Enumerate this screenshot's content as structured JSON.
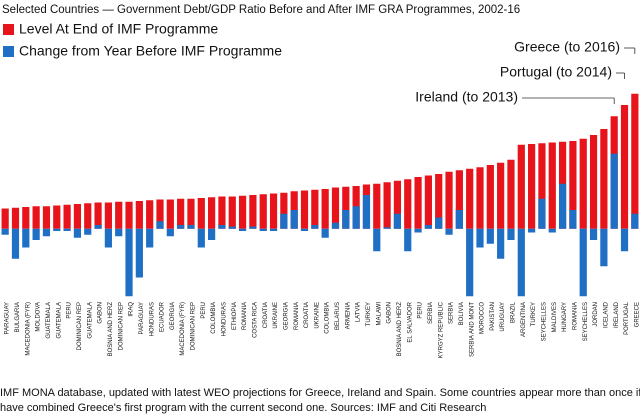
{
  "chart_data": {
    "type": "bar",
    "title": "Selected Countries — Government Debt/GDP Ratio Before and After IMF GRA Programmes, 2002-16",
    "categories": [
      "PARAGUAY",
      "BULGARIA",
      "MACEDONIA (FYR)",
      "MOLDOVA",
      "GUATEMALA",
      "GUATEMALA",
      "PERU",
      "DOMINICAN REP",
      "GUATEMALA",
      "GABON",
      "BOSNIA AND HERZ",
      "DOMINICAN REP",
      "IRAQ",
      "PARAGUAY",
      "HONDURAS",
      "ECUADOR",
      "GEORGIA",
      "MACEDONIA (FYR)",
      "DOMINICAN REP",
      "PERU",
      "COLOMBIA",
      "HONDURAS",
      "ETHIOPIA",
      "ROMANIA",
      "COSTA RICA",
      "CROATIA",
      "UKRAINE",
      "GEORGIA",
      "ROMANIA",
      "CROATIA",
      "UKRAINE",
      "COLOMBIA",
      "BELARUS",
      "ARMENIA",
      "LATVIA",
      "TURKEY",
      "MALAWI",
      "GABON",
      "BOSNIA AND HERZ",
      "EL SALVADOR",
      "PERU",
      "SERBIA",
      "KYRGYZ REPUBLIC",
      "SERBIA",
      "BOLIVIA",
      "SERBIA AND MONT",
      "MOROCCO",
      "PAKISTAN",
      "URUGUAY",
      "BRAZIL",
      "ARGENTINA",
      "TURKEY",
      "SEYCHELLES",
      "MALDIVES",
      "HUNGARY",
      "ROMANIA",
      "SEYCHELLES",
      "JORDAN",
      "ICELAND",
      "IRELAND",
      "PORTUGAL",
      "GREECE"
    ],
    "series": [
      {
        "name": "Level At End of IMF Programme",
        "color": "#e8141c",
        "values": [
          27,
          28,
          29,
          30,
          30,
          31,
          32,
          33,
          34,
          35,
          35,
          36,
          36,
          37,
          38,
          39,
          39,
          40,
          40,
          41,
          42,
          43,
          43,
          44,
          45,
          46,
          47,
          48,
          50,
          51,
          52,
          53,
          55,
          56,
          57,
          59,
          60,
          62,
          64,
          66,
          69,
          71,
          73,
          76,
          78,
          80,
          82,
          85,
          88,
          92,
          112,
          113,
          114,
          115,
          116,
          117,
          120,
          125,
          133,
          150,
          165,
          180
        ]
      },
      {
        "name": "Change from Year Before IMF Programme",
        "color": "#1f6fc5",
        "values": [
          -8,
          -40,
          -25,
          -15,
          -10,
          -3,
          -3,
          -12,
          -8,
          5,
          -25,
          -10,
          -90,
          -65,
          -25,
          10,
          -10,
          5,
          5,
          -25,
          -15,
          5,
          3,
          -3,
          3,
          -3,
          -3,
          20,
          25,
          -3,
          5,
          -12,
          8,
          25,
          30,
          45,
          -30,
          2,
          20,
          -30,
          -5,
          5,
          15,
          -8,
          25,
          -90,
          -25,
          -20,
          -40,
          -15,
          -90,
          -5,
          40,
          -5,
          60,
          25,
          -90,
          -15,
          -50,
          100,
          -30,
          20
        ]
      }
    ],
    "ylim": [
      -95,
      185
    ],
    "legend": "top-left",
    "annotations": [
      "Greece (to 2016)",
      "Portugal (to 2014)",
      "Ireland (to 2013)"
    ],
    "footnotes": [
      "IMF MONA database, updated with latest WEO projections for Greece, Ireland and Spain. Some countries appear more than once if they ha",
      "have combined Greece's first program with the current second one. Sources: IMF and Citi Research"
    ]
  }
}
